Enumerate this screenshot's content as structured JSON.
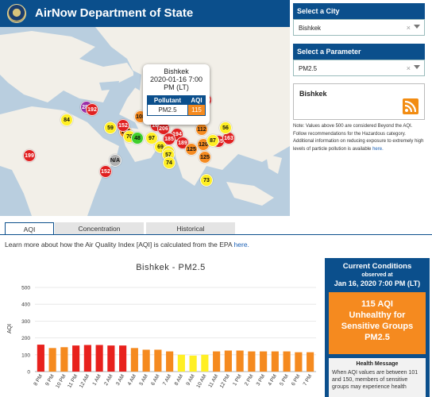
{
  "header": {
    "title": "AirNow Department of State"
  },
  "map": {
    "popup": {
      "city": "Bishkek",
      "datetime": "2020-01-16 7:00 PM (LT)",
      "col_pollutant": "Pollutant",
      "col_aqi": "AQI",
      "pollutant": "PM2.5",
      "aqi": "115"
    },
    "markers": [
      "84",
      "289",
      "192",
      "115",
      "108",
      "165",
      "160",
      "165",
      "163",
      "166",
      "59",
      "117",
      "70",
      "48",
      "97",
      "152",
      "112",
      "56",
      "206",
      "194",
      "189",
      "185",
      "120",
      "87",
      "69",
      "94",
      "57",
      "74",
      "125",
      "125",
      "199",
      "N/A",
      "152",
      "73"
    ]
  },
  "sidebar": {
    "city_heading": "Select a City",
    "city_value": "Bishkek",
    "param_heading": "Select a Parameter",
    "param_value": "PM2.5",
    "city_box_name": "Bishkek",
    "note_text": "Note: Values above 500 are considered Beyond the AQI. Follow recommendations for the Hazardous category. Additional information on reducing exposure to extremely high levels of particle pollution is available",
    "note_link": "here.",
    "clear_glyph": "×"
  },
  "tabs": [
    "AQI",
    "Concentration",
    "Historical"
  ],
  "learn": {
    "text": "Learn more about how the Air Quality Index [AQI] is calculated from the EPA",
    "link": "here."
  },
  "chart_data": {
    "type": "bar",
    "title": "Bishkek - PM2.5",
    "ylabel": "AQI",
    "xlabel": "",
    "ylim": [
      0,
      500
    ],
    "yticks": [
      0,
      100,
      200,
      300,
      400,
      500
    ],
    "categories": [
      "8 PM",
      "9 PM",
      "10 PM",
      "11 PM",
      "12 AM",
      "1 AM",
      "2 AM",
      "3 AM",
      "4 AM",
      "5 AM",
      "6 AM",
      "7 AM",
      "8 AM",
      "9 AM",
      "10 AM",
      "11 AM",
      "12 PM",
      "1 PM",
      "2 PM",
      "3 PM",
      "4 PM",
      "5 PM",
      "6 PM",
      "7 PM"
    ],
    "values": [
      160,
      140,
      145,
      155,
      158,
      158,
      155,
      155,
      140,
      130,
      130,
      120,
      100,
      95,
      100,
      120,
      125,
      125,
      120,
      120,
      120,
      120,
      115,
      115
    ],
    "colors": {
      "unhealthy": "#e8211d",
      "usg": "#f58a1f",
      "moderate": "#ffef24"
    }
  },
  "current": {
    "title": "Current Conditions",
    "observed": "observed at",
    "datetime": "Jan 16, 2020 7:00 PM (LT)",
    "aqi_line": "115 AQI",
    "category": "Unhealthy for Sensitive Groups",
    "pollutant": "PM2.5",
    "msg_head": "Health Message",
    "msg_body": "When AQI values are between 101 and 150, members of sensitive groups may experience health"
  },
  "colors": {
    "brand": "#0b4f8c",
    "usg": "#f58a1f"
  }
}
